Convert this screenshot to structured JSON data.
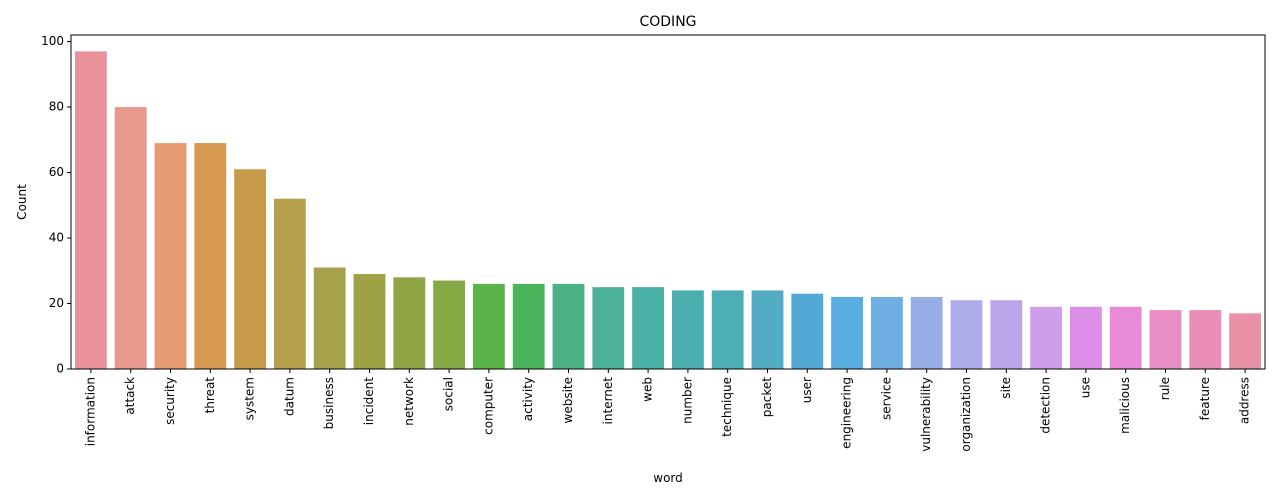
{
  "chart_data": {
    "type": "bar",
    "title": "CODING",
    "xlabel": "word",
    "ylabel": "Count",
    "ylim": [
      0,
      102
    ],
    "yticks": [
      0,
      20,
      40,
      60,
      80,
      100
    ],
    "grid": false,
    "categories": [
      "information",
      "attack",
      "security",
      "threat",
      "system",
      "datum",
      "business",
      "incident",
      "network",
      "social",
      "computer",
      "activity",
      "website",
      "internet",
      "web",
      "number",
      "technique",
      "packet",
      "user",
      "engineering",
      "service",
      "vulnerability",
      "organization",
      "site",
      "detection",
      "use",
      "malicious",
      "rule",
      "feature",
      "address"
    ],
    "values": [
      97,
      80,
      69,
      69,
      61,
      52,
      31,
      29,
      28,
      27,
      26,
      26,
      26,
      25,
      25,
      24,
      24,
      24,
      23,
      22,
      22,
      22,
      21,
      21,
      19,
      19,
      19,
      18,
      18,
      17
    ],
    "colors": [
      "#ea929b",
      "#e9988d",
      "#e69a72",
      "#d89a50",
      "#c79a49",
      "#b6a04c",
      "#a6a24b",
      "#9ea245",
      "#90a546",
      "#84a945",
      "#5ab44a",
      "#4bb35c",
      "#4cb186",
      "#4db198",
      "#4aafa5",
      "#4cafaf",
      "#4eaeb8",
      "#52acc4",
      "#52a9d6",
      "#58aee0",
      "#6eaee3",
      "#98aee6",
      "#afacea",
      "#bca6ea",
      "#cd9eea",
      "#dd8ee8",
      "#e88ad8",
      "#e98ec5",
      "#e88eb7",
      "#e891a4"
    ]
  }
}
